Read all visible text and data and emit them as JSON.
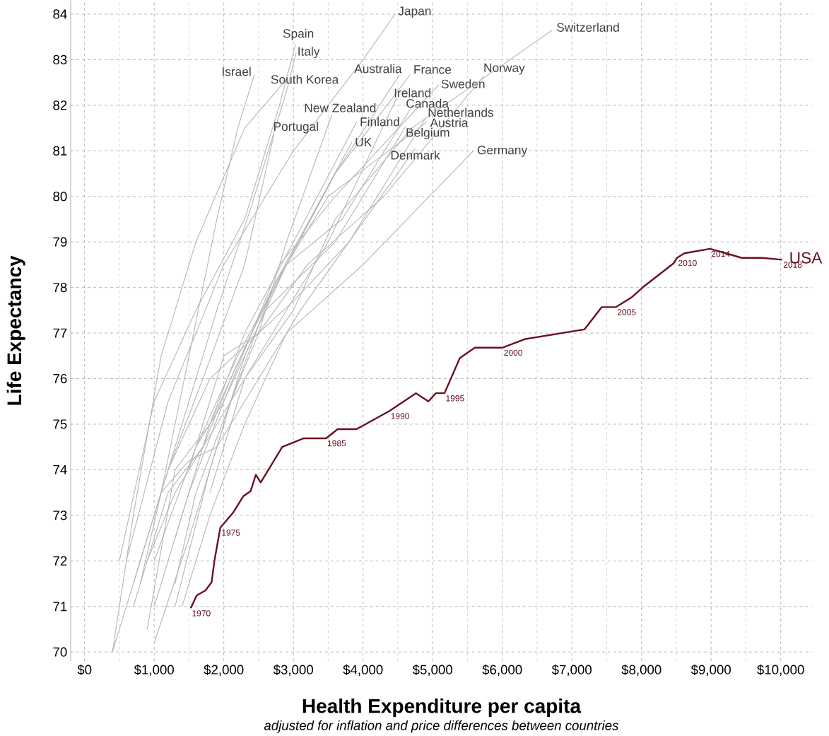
{
  "chart_data": {
    "type": "line",
    "xlabel": "Health Expenditure per capita",
    "ylabel": "Life Expectancy",
    "annotations": [
      "*adjusted for inflation and price differences between countries*",
      {
        "text": "1970",
        "x": 1525,
        "y": 70.96
      },
      {
        "text": "1975",
        "x": 1950,
        "y": 72.73
      },
      {
        "text": "1985",
        "x": 3470,
        "y": 74.69
      },
      {
        "text": "1990",
        "x": 4380,
        "y": 75.29
      },
      {
        "text": "1995",
        "x": 5170,
        "y": 75.68
      },
      {
        "text": "2000",
        "x": 6005,
        "y": 76.68
      },
      {
        "text": "2005",
        "x": 7635,
        "y": 77.57
      },
      {
        "text": "2010",
        "x": 8510,
        "y": 78.65
      },
      {
        "text": "2014",
        "x": 8985,
        "y": 78.85
      },
      {
        "text": "2018",
        "x": 10020,
        "y": 78.61
      }
    ],
    "xlim": [
      -200,
      10450
    ],
    "ylim": [
      69.8,
      84.3
    ],
    "xticks": [
      {
        "value": 0,
        "label": "$0"
      },
      {
        "value": 1000,
        "label": "$1,000"
      },
      {
        "value": 2000,
        "label": "$2,000"
      },
      {
        "value": 3000,
        "label": "$3,000"
      },
      {
        "value": 4000,
        "label": "$4,000"
      },
      {
        "value": 5000,
        "label": "$5,000"
      },
      {
        "value": 6000,
        "label": "$6,000"
      },
      {
        "value": 7000,
        "label": "$7,000"
      },
      {
        "value": 8000,
        "label": "$8,000"
      },
      {
        "value": 9000,
        "label": "$9,000"
      },
      {
        "value": 10000,
        "label": "$10,000"
      }
    ],
    "yticks": [
      70,
      71,
      72,
      73,
      74,
      75,
      76,
      77,
      78,
      79,
      80,
      81,
      82,
      83,
      84
    ],
    "grid": true,
    "series": [
      {
        "name": "Japan",
        "color": "#b4b4b4",
        "x": [
          600,
          1200,
          2000,
          3000,
          4000,
          4460
        ],
        "values": [
          72.0,
          75.5,
          78.5,
          81.0,
          83.0,
          84.0
        ]
      },
      {
        "name": "Spain",
        "color": "#b4b4b4",
        "x": [
          500,
          1000,
          1600,
          2300,
          2800,
          3030
        ],
        "values": [
          72.0,
          75.5,
          77.5,
          79.5,
          82.0,
          83.34
        ]
      },
      {
        "name": "Italy",
        "color": "#b4b4b4",
        "x": [
          700,
          1300,
          1900,
          2400,
          2900,
          3040
        ],
        "values": [
          71.5,
          74.5,
          77.5,
          79.8,
          82.3,
          83.16
        ]
      },
      {
        "name": "Israel",
        "color": "#b4b4b4",
        "x": [
          800,
          1100,
          1500,
          1900,
          2200,
          2440
        ],
        "values": [
          71.5,
          73.5,
          76.5,
          79.5,
          81.5,
          82.68
        ]
      },
      {
        "name": "South Korea",
        "color": "#b4b4b4",
        "x": [
          400,
          700,
          1100,
          1600,
          2300,
          2900
        ],
        "values": [
          70.0,
          73.0,
          76.5,
          79.0,
          81.5,
          82.57
        ]
      },
      {
        "name": "Australia",
        "color": "#b4b4b4",
        "x": [
          1300,
          1800,
          2300,
          2900,
          3600,
          4520
        ],
        "values": [
          71.0,
          74.0,
          76.5,
          78.5,
          80.5,
          82.66
        ]
      },
      {
        "name": "France",
        "color": "#b4b4b4",
        "x": [
          1000,
          1600,
          2200,
          2900,
          3600,
          4680
        ],
        "values": [
          72.0,
          74.5,
          76.5,
          78.5,
          80.5,
          82.68
        ]
      },
      {
        "name": "Ireland",
        "color": "#b4b4b4",
        "x": [
          700,
          1200,
          1700,
          2500,
          3500,
          4480
        ],
        "values": [
          71.0,
          73.5,
          74.5,
          76.5,
          79.0,
          82.15
        ]
      },
      {
        "name": "Sweden",
        "color": "#b4b4b4",
        "x": [
          1600,
          2000,
          2400,
          2800,
          3600,
          5090
        ],
        "values": [
          74.5,
          75.5,
          77.0,
          78.5,
          80.0,
          82.45
        ]
      },
      {
        "name": "Norway",
        "color": "#b4b4b4",
        "x": [
          1200,
          1800,
          2500,
          3200,
          4300,
          5740
        ],
        "values": [
          74.0,
          76.0,
          77.0,
          78.5,
          80.0,
          82.65
        ]
      },
      {
        "name": "Switzerland",
        "color": "#b4b4b4",
        "x": [
          1800,
          2300,
          3000,
          3600,
          4700,
          6720
        ],
        "values": [
          73.5,
          76.0,
          77.5,
          79.5,
          81.5,
          83.65
        ]
      },
      {
        "name": "Canada",
        "color": "#b4b4b4",
        "x": [
          1300,
          1800,
          2400,
          2900,
          3700,
          4680
        ],
        "values": [
          72.5,
          75.0,
          77.0,
          78.5,
          79.5,
          81.92
        ]
      },
      {
        "name": "New Zealand",
        "color": "#b4b4b4",
        "x": [
          1300,
          1600,
          2100,
          2500,
          2900,
          3550
        ],
        "values": [
          71.5,
          73.5,
          75.5,
          77.0,
          79.0,
          81.78
        ]
      },
      {
        "name": "Finland",
        "color": "#b4b4b4",
        "x": [
          900,
          1300,
          1800,
          2300,
          3000,
          3910
        ],
        "values": [
          70.5,
          74.0,
          75.0,
          77.0,
          79.0,
          81.64
        ]
      },
      {
        "name": "Netherlands",
        "color": "#b4b4b4",
        "x": [
          1500,
          2000,
          2500,
          3000,
          3800,
          4900
        ],
        "values": [
          74.0,
          76.5,
          77.0,
          77.7,
          79.0,
          81.72
        ]
      },
      {
        "name": "Austria",
        "color": "#b4b4b4",
        "x": [
          1000,
          1500,
          2100,
          2700,
          3500,
          4920
        ],
        "values": [
          70.2,
          72.5,
          75.5,
          78.0,
          80.0,
          81.64
        ]
      },
      {
        "name": "Portugal",
        "color": "#b4b4b4",
        "x": [
          400,
          800,
          1200,
          1700,
          2300,
          2720
        ],
        "values": [
          70.0,
          72.0,
          74.0,
          76.0,
          78.5,
          81.36
        ]
      },
      {
        "name": "Belgium",
        "color": "#b4b4b4",
        "x": [
          1000,
          1500,
          2000,
          2600,
          3600,
          4610
        ],
        "values": [
          71.0,
          73.5,
          75.5,
          77.5,
          79.0,
          81.53
        ]
      },
      {
        "name": "UK",
        "color": "#b4b4b4",
        "x": [
          900,
          1300,
          1700,
          2100,
          2700,
          3840
        ],
        "values": [
          72.0,
          73.5,
          74.5,
          76.0,
          78.0,
          81.19
        ]
      },
      {
        "name": "Denmark",
        "color": "#b4b4b4",
        "x": [
          1100,
          1500,
          1900,
          2300,
          3100,
          4750
        ],
        "values": [
          73.5,
          74.2,
          74.5,
          75.5,
          77.5,
          81.05
        ]
      },
      {
        "name": "Germany",
        "color": "#b4b4b4",
        "x": [
          1400,
          1800,
          2300,
          2900,
          4000,
          5580
        ],
        "values": [
          71.0,
          73.0,
          75.0,
          77.0,
          78.5,
          80.99
        ]
      },
      {
        "name": "USA",
        "color": "#6b1020",
        "x": [
          1525,
          1610,
          1735,
          1825,
          1865,
          1950,
          2135,
          2280,
          2385,
          2460,
          2530,
          2840,
          3150,
          3470,
          3635,
          3905,
          4380,
          4760,
          4940,
          5045,
          5170,
          5390,
          5605,
          6005,
          6335,
          7180,
          7430,
          7635,
          7855,
          8040,
          8460,
          8510,
          8615,
          8985,
          9440,
          9730,
          10020
        ],
        "values": [
          70.96,
          71.24,
          71.35,
          71.53,
          72.0,
          72.73,
          73.06,
          73.42,
          73.53,
          73.89,
          73.72,
          74.5,
          74.69,
          74.69,
          74.89,
          74.89,
          75.29,
          75.68,
          75.5,
          75.68,
          75.68,
          76.45,
          76.68,
          76.68,
          76.87,
          77.08,
          77.57,
          77.57,
          77.78,
          78.03,
          78.53,
          78.65,
          78.75,
          78.85,
          78.65,
          78.65,
          78.61
        ]
      }
    ]
  }
}
